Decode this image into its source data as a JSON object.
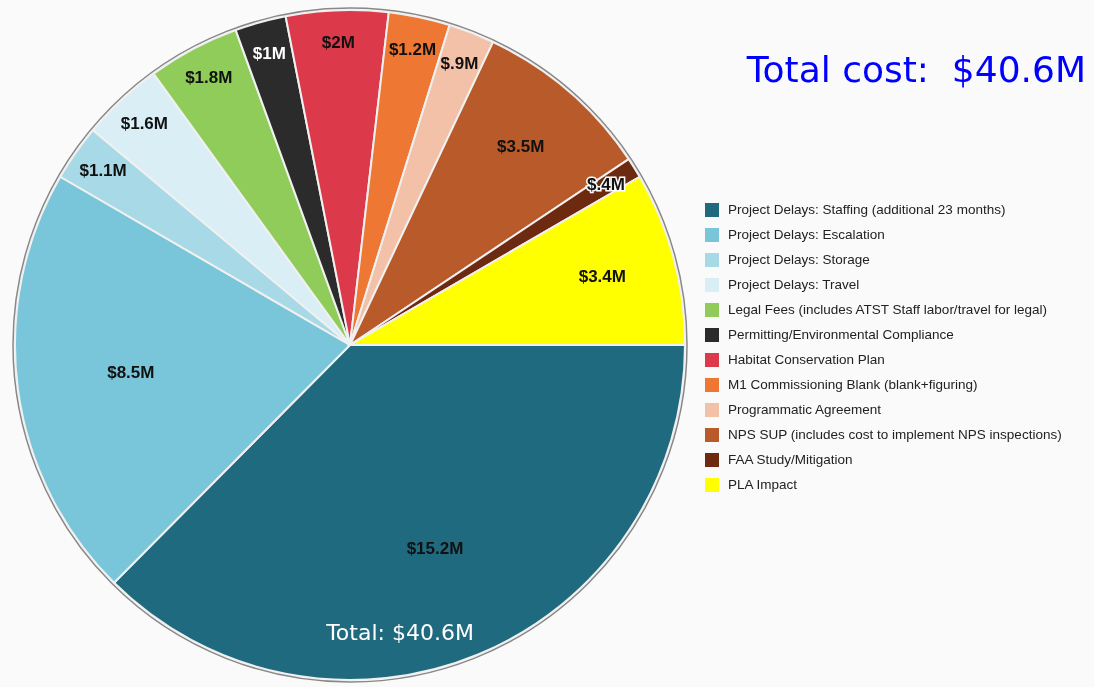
{
  "chart_data": {
    "type": "pie",
    "title": "Total cost:  $40.6M",
    "categories": [
      "Project Delays: Staffing (additional 23 months)",
      "Project Delays: Escalation",
      "Project Delays: Storage",
      "Project Delays: Travel",
      "Legal Fees (includes ATST Staff labor/travel for legal)",
      "Permitting/Environmental Compliance",
      "Habitat Conservation Plan",
      "M1 Commissioning Blank (blank+figuring)",
      "Programmatic Agreement",
      "NPS SUP (includes cost to implement NPS inspections)",
      "FAA Study/Mitigation",
      "PLA Impact"
    ],
    "values": [
      15.2,
      8.5,
      1.1,
      1.6,
      1.8,
      1,
      2,
      1.2,
      0.9,
      3.5,
      0.4,
      3.4
    ],
    "value_labels": [
      "$15.2M",
      "$8.5M",
      "$1.1M",
      "$1.6M",
      "$1.8M",
      "$1M",
      "$2M",
      "$1.2M",
      "$.9M",
      "$3.5M",
      "$.4M",
      "$3.4M"
    ],
    "colors": [
      "#1f6a7e",
      "#79c5d9",
      "#a8d9e6",
      "#d9eef5",
      "#8fcc5a",
      "#2b2b2b",
      "#dc3a4a",
      "#ee7733",
      "#f3c0a8",
      "#b85a2a",
      "#6e2a10",
      "#ffff00"
    ],
    "legend": "right",
    "annotations": [
      "Total: $40.6M"
    ]
  }
}
